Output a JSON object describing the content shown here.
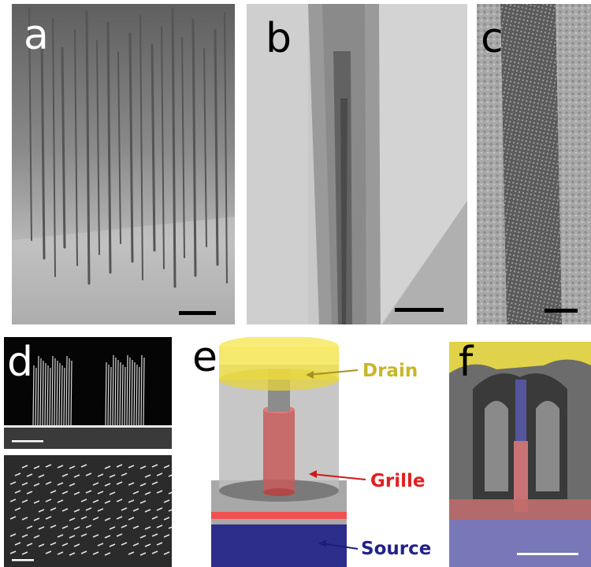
{
  "panels": {
    "a": {
      "letter": "a"
    },
    "b": {
      "letter": "b"
    },
    "c": {
      "letter": "c"
    },
    "d": {
      "letter": "d"
    },
    "e": {
      "letter": "e"
    },
    "f": {
      "letter": "f"
    }
  },
  "schematic": {
    "drain_label": "Drain",
    "gate_label": "Grille",
    "source_label": "Source"
  },
  "colors": {
    "drain": "#c9b52a",
    "gate": "#e02020",
    "source": "#22228a"
  }
}
